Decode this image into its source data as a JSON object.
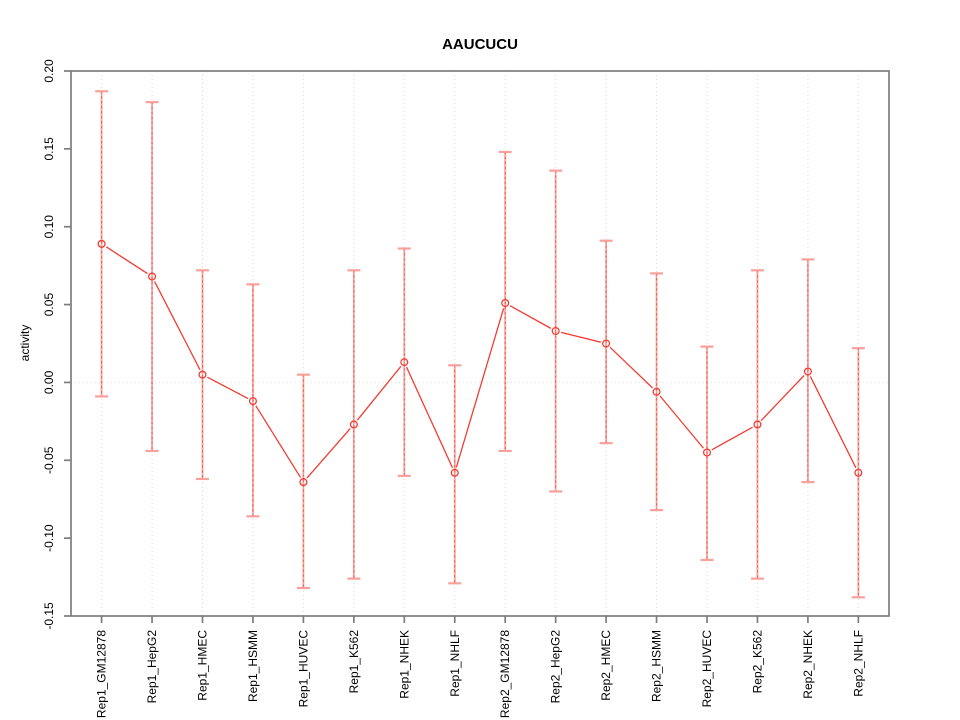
{
  "chart_data": {
    "type": "line",
    "title": "AAUCUCU",
    "ylabel": "activity",
    "xlabel": "",
    "categories": [
      "Rep1_GM12878",
      "Rep1_HepG2",
      "Rep1_HMEC",
      "Rep1_HSMM",
      "Rep1_HUVEC",
      "Rep1_K562",
      "Rep1_NHEK",
      "Rep1_NHLF",
      "Rep2_GM12878",
      "Rep2_HepG2",
      "Rep2_HMEC",
      "Rep2_HSMM",
      "Rep2_HUVEC",
      "Rep2_K562",
      "Rep2_NHEK",
      "Rep2_NHLF"
    ],
    "series": [
      {
        "name": "activity",
        "values": [
          0.089,
          0.068,
          0.005,
          -0.012,
          -0.064,
          -0.027,
          0.013,
          -0.058,
          0.051,
          0.033,
          0.025,
          -0.006,
          -0.045,
          -0.027,
          0.007,
          -0.058
        ],
        "ci_high": [
          0.187,
          0.18,
          0.072,
          0.063,
          0.005,
          0.072,
          0.086,
          0.011,
          0.148,
          0.136,
          0.091,
          0.07,
          0.023,
          0.072,
          0.079,
          0.022
        ],
        "ci_low": [
          -0.009,
          -0.044,
          -0.062,
          -0.086,
          -0.132,
          -0.126,
          -0.06,
          -0.129,
          -0.044,
          -0.07,
          -0.039,
          -0.082,
          -0.114,
          -0.126,
          -0.064,
          -0.138
        ]
      }
    ],
    "ylim": [
      -0.15,
      0.2
    ],
    "yticks": {
      "values": [
        0.2,
        0.15,
        0.1,
        0.05,
        0.0,
        -0.05,
        -0.1,
        -0.15
      ],
      "labels": [
        "0.20",
        "0.15",
        "0.10",
        "0.05",
        "0.00",
        "-0.05",
        "-0.10",
        "-0.15"
      ]
    },
    "grid": {
      "vertical": "dotted line at every category",
      "horizontal": "dotted line at y = 0 only"
    },
    "legend": "none",
    "colors": {
      "series_line": "#f23d33",
      "error_bar": "#f9a09b",
      "error_bar_dash": "#ef5348",
      "axis_box": "#7d7d7d",
      "gridline": "#dadada",
      "zero_line": "#dedede",
      "text": "#000000",
      "background": "#ffffff"
    }
  }
}
